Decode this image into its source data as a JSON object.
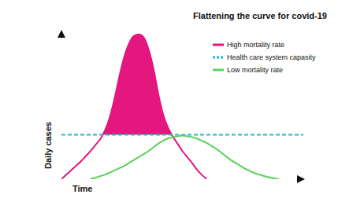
{
  "chart_data": {
    "type": "line",
    "title": "Flattening the curve for covid-19",
    "x_label": "Time",
    "y_label": "Daily cases",
    "tick_labels": false,
    "grid": false,
    "legend": "upper right",
    "xlim": [
      0,
      100
    ],
    "ylim": [
      0,
      100
    ],
    "x": [
      0,
      2,
      4,
      6,
      8,
      10,
      12,
      14,
      16,
      18,
      20,
      22,
      24,
      26,
      28,
      30,
      32,
      34,
      36,
      38,
      40,
      42,
      44,
      46,
      48,
      50,
      52,
      54,
      56,
      58,
      60,
      62,
      64,
      66,
      68,
      70,
      72,
      74,
      76,
      78,
      80,
      82,
      84,
      86,
      88,
      90,
      92,
      94,
      96,
      98,
      100
    ],
    "series": [
      {
        "name": "High mortality rate",
        "color": "#e3177f",
        "type": "area",
        "values": [
          0,
          3,
          6,
          9,
          12,
          15.5,
          19,
          23,
          27,
          33,
          42,
          55,
          70,
          83,
          92,
          97,
          98,
          96,
          88,
          75,
          58,
          44,
          35,
          29,
          24,
          19,
          15,
          11,
          6.5,
          3,
          0,
          null,
          null,
          null,
          null,
          null,
          null,
          null,
          null,
          null,
          null,
          null,
          null,
          null,
          null,
          null,
          null,
          null,
          null,
          null,
          null
        ]
      },
      {
        "name": "Health care system capasity",
        "color": "#2bb5c9",
        "type": "line",
        "line_style": "dashed",
        "values": [
          30,
          30,
          30,
          30,
          30,
          30,
          30,
          30,
          30,
          30,
          30,
          30,
          30,
          30,
          30,
          30,
          30,
          30,
          30,
          30,
          30,
          30,
          30,
          30,
          30,
          30,
          30,
          30,
          30,
          30,
          30,
          30,
          30,
          30,
          30,
          30,
          30,
          30,
          30,
          30,
          30,
          30,
          30,
          30,
          30,
          30,
          30,
          30,
          30,
          30,
          30
        ]
      },
      {
        "name": "Low mortality rate",
        "color": "#5ad35a",
        "type": "line",
        "values": [
          null,
          null,
          null,
          null,
          null,
          null,
          0,
          1,
          2,
          3,
          4.5,
          6,
          7.5,
          9,
          11,
          13,
          15,
          17,
          19,
          21.5,
          24,
          26,
          27.5,
          28.5,
          29,
          29.5,
          29,
          28.5,
          27.5,
          26,
          24.5,
          22.5,
          20.5,
          18,
          15.5,
          13,
          11,
          9,
          7,
          5.5,
          4,
          3,
          2,
          1.2,
          0.5,
          0,
          null,
          null,
          null,
          null,
          null
        ]
      }
    ]
  }
}
